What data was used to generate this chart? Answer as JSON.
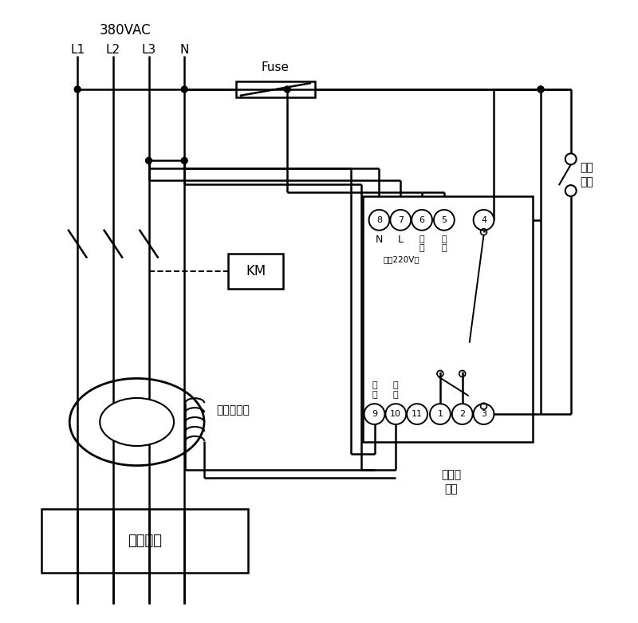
{
  "bg_color": "#ffffff",
  "figsize": [
    8.0,
    7.81
  ],
  "voltage_label": "380VAC",
  "phase_labels": [
    "L1",
    "L2",
    "L3",
    "N"
  ],
  "fuse_label": "Fuse",
  "km_label": "KM",
  "zero_seq_label": "零序互感器",
  "user_equip_label": "用户设备",
  "relay_top_labels": [
    "8",
    "7",
    "6",
    "5",
    "4"
  ],
  "relay_bot_labels": [
    "9",
    "10",
    "11",
    "1",
    "2",
    "3"
  ],
  "relay_n_label": "N",
  "relay_l_label": "L",
  "relay_test1": "试\n验",
  "relay_test2": "试\n验",
  "relay_power_label": "电源220V～",
  "relay_sig1": "信\n号",
  "relay_sig2": "信\n号",
  "sound_light_label": "接声光\n报警",
  "self_lock_label": "自锁\n开关"
}
